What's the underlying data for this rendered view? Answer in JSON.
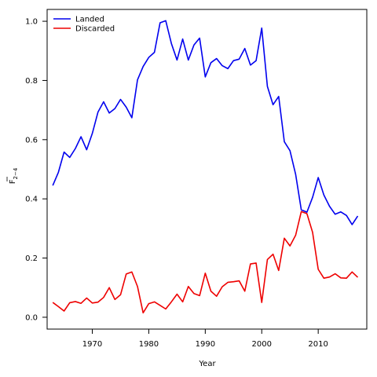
{
  "chart_data": {
    "type": "line",
    "xlabel": "Year",
    "ylabel_main": "F",
    "ylabel_sub": "2−4",
    "xlim": [
      1962,
      2018.6
    ],
    "ylim": [
      -0.04,
      1.04
    ],
    "xticks": [
      1970,
      1980,
      1990,
      2000,
      2010
    ],
    "yticks": [
      0.0,
      0.2,
      0.4,
      0.6,
      0.8,
      1.0
    ],
    "ytick_labels": [
      "0.0",
      "0.2",
      "0.4",
      "0.6",
      "0.8",
      "1.0"
    ],
    "legend_position": "top-left",
    "grid": false,
    "x": [
      1963,
      1964,
      1965,
      1966,
      1967,
      1968,
      1969,
      1970,
      1971,
      1972,
      1973,
      1974,
      1975,
      1976,
      1977,
      1978,
      1979,
      1980,
      1981,
      1982,
      1983,
      1984,
      1985,
      1986,
      1987,
      1988,
      1989,
      1990,
      1991,
      1992,
      1993,
      1994,
      1995,
      1996,
      1997,
      1998,
      1999,
      2000,
      2001,
      2002,
      2003,
      2004,
      2005,
      2006,
      2007,
      2008,
      2009,
      2010,
      2011,
      2012,
      2013,
      2014,
      2015,
      2016,
      2017
    ],
    "series": [
      {
        "name": "Landed",
        "color": "#0000ee",
        "values": [
          0.445,
          0.49,
          0.558,
          0.54,
          0.57,
          0.61,
          0.566,
          0.621,
          0.693,
          0.728,
          0.69,
          0.705,
          0.736,
          0.71,
          0.674,
          0.802,
          0.847,
          0.878,
          0.895,
          0.995,
          1.002,
          0.925,
          0.869,
          0.94,
          0.869,
          0.92,
          0.943,
          0.812,
          0.86,
          0.874,
          0.85,
          0.84,
          0.867,
          0.872,
          0.908,
          0.852,
          0.867,
          0.977,
          0.78,
          0.718,
          0.746,
          0.593,
          0.563,
          0.483,
          0.363,
          0.355,
          0.405,
          0.472,
          0.413,
          0.375,
          0.348,
          0.356,
          0.344,
          0.313,
          0.342
        ]
      },
      {
        "name": "Discarded",
        "color": "#ee0000",
        "values": [
          0.05,
          0.036,
          0.021,
          0.049,
          0.053,
          0.047,
          0.065,
          0.048,
          0.051,
          0.067,
          0.1,
          0.06,
          0.076,
          0.146,
          0.153,
          0.104,
          0.015,
          0.046,
          0.052,
          0.04,
          0.028,
          0.052,
          0.078,
          0.052,
          0.104,
          0.08,
          0.073,
          0.149,
          0.088,
          0.071,
          0.103,
          0.118,
          0.12,
          0.123,
          0.088,
          0.18,
          0.183,
          0.05,
          0.195,
          0.213,
          0.158,
          0.267,
          0.241,
          0.277,
          0.357,
          0.35,
          0.287,
          0.162,
          0.132,
          0.136,
          0.147,
          0.133,
          0.132,
          0.153,
          0.135
        ]
      }
    ]
  }
}
